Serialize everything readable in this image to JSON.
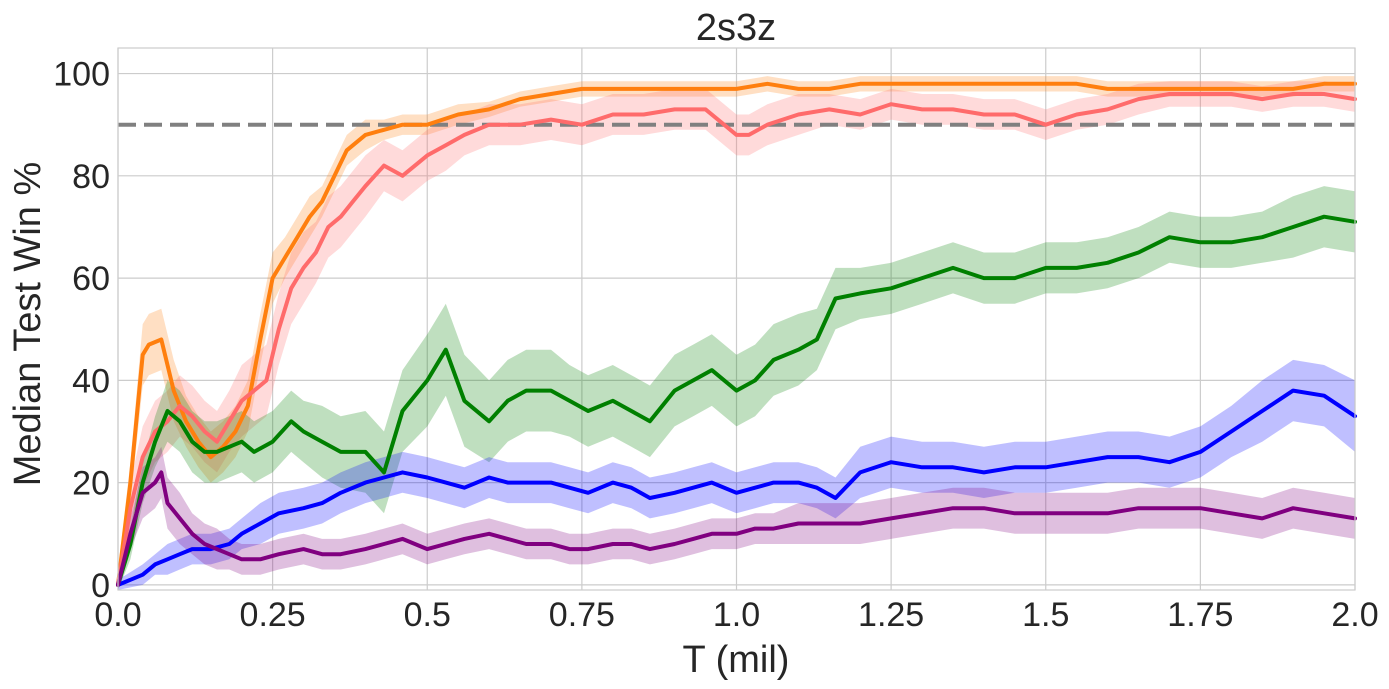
{
  "chart_data": {
    "type": "line",
    "title": "2s3z",
    "xlabel": "T (mil)",
    "ylabel": "Median Test Win %",
    "xlim": [
      0.0,
      2.0
    ],
    "ylim": [
      -1,
      105
    ],
    "xticks": [
      0.0,
      0.25,
      0.5,
      0.75,
      1.0,
      1.25,
      1.5,
      1.75,
      2.0
    ],
    "xtick_labels": [
      "0.0",
      "0.25",
      "0.5",
      "0.75",
      "1.0",
      "1.25",
      "1.5",
      "1.75",
      "2.0"
    ],
    "yticks": [
      0,
      20,
      40,
      60,
      80,
      100
    ],
    "ytick_labels": [
      "0",
      "20",
      "40",
      "60",
      "80",
      "100"
    ],
    "grid": true,
    "reference_line": {
      "y": 90,
      "style": "dashed",
      "color": "#808080"
    },
    "series": [
      {
        "color": "#ff7f0e",
        "x": [
          0,
          0.02,
          0.04,
          0.05,
          0.07,
          0.09,
          0.11,
          0.13,
          0.15,
          0.17,
          0.19,
          0.21,
          0.23,
          0.25,
          0.27,
          0.29,
          0.31,
          0.33,
          0.35,
          0.37,
          0.4,
          0.43,
          0.46,
          0.5,
          0.55,
          0.6,
          0.65,
          0.7,
          0.75,
          0.8,
          0.85,
          0.9,
          0.95,
          1.0,
          1.05,
          1.1,
          1.15,
          1.2,
          1.25,
          1.3,
          1.35,
          1.4,
          1.45,
          1.5,
          1.55,
          1.6,
          1.65,
          1.7,
          1.75,
          1.8,
          1.85,
          1.9,
          1.95,
          2.0
        ],
        "y": [
          0,
          20,
          45,
          47,
          48,
          38,
          32,
          28,
          25,
          27,
          30,
          35,
          48,
          60,
          64,
          68,
          72,
          75,
          80,
          85,
          88,
          89,
          90,
          90,
          92,
          93,
          95,
          96,
          97,
          97,
          97,
          97,
          97,
          97,
          98,
          97,
          97,
          98,
          98,
          98,
          98,
          98,
          98,
          98,
          98,
          97,
          97,
          97,
          97,
          97,
          97,
          97,
          98,
          98
        ],
        "band": [
          3,
          4,
          6,
          6,
          6,
          6,
          5,
          5,
          5,
          5,
          5,
          5,
          5,
          5,
          4,
          4,
          4,
          3,
          3,
          3,
          3,
          2,
          2,
          2,
          2,
          1.5,
          1.5,
          1.5,
          1.5,
          1.5,
          1.5,
          1.5,
          1.5,
          1.5,
          1.5,
          1.5,
          1.5,
          1.5,
          1.5,
          1.5,
          1.5,
          1.5,
          1.5,
          1.5,
          1.5,
          1.5,
          1.5,
          1.5,
          1.5,
          1.5,
          1.5,
          1.5,
          1.5,
          1.5
        ]
      },
      {
        "color": "#ff6b6b",
        "x": [
          0,
          0.02,
          0.04,
          0.06,
          0.08,
          0.1,
          0.12,
          0.14,
          0.16,
          0.18,
          0.2,
          0.22,
          0.24,
          0.26,
          0.28,
          0.3,
          0.32,
          0.34,
          0.36,
          0.38,
          0.4,
          0.43,
          0.46,
          0.5,
          0.53,
          0.56,
          0.6,
          0.65,
          0.7,
          0.75,
          0.8,
          0.85,
          0.9,
          0.95,
          1.0,
          1.02,
          1.05,
          1.1,
          1.15,
          1.2,
          1.25,
          1.3,
          1.35,
          1.4,
          1.45,
          1.5,
          1.55,
          1.6,
          1.65,
          1.7,
          1.75,
          1.8,
          1.85,
          1.9,
          1.95,
          2.0
        ],
        "y": [
          0,
          15,
          25,
          30,
          32,
          35,
          33,
          30,
          28,
          32,
          36,
          38,
          40,
          50,
          58,
          62,
          65,
          70,
          72,
          75,
          78,
          82,
          80,
          84,
          86,
          88,
          90,
          90,
          91,
          90,
          92,
          92,
          93,
          93,
          88,
          88,
          90,
          92,
          93,
          92,
          94,
          93,
          93,
          92,
          92,
          90,
          92,
          93,
          95,
          96,
          96,
          96,
          95,
          96,
          96,
          95
        ],
        "band": [
          3,
          5,
          6,
          6,
          6,
          6,
          6,
          6,
          6,
          6,
          7,
          7,
          7,
          7,
          7,
          7,
          6,
          6,
          6,
          6,
          6,
          5,
          5,
          5,
          5,
          4,
          4,
          4,
          4,
          4,
          4,
          4,
          4,
          4,
          4,
          4,
          4,
          4,
          3,
          3,
          3,
          3,
          3,
          3,
          3,
          3,
          3,
          3,
          3,
          2.5,
          2.5,
          2.5,
          2.5,
          2.5,
          2.5,
          2.5
        ]
      },
      {
        "color": "#008000",
        "x": [
          0,
          0.02,
          0.04,
          0.06,
          0.08,
          0.1,
          0.12,
          0.14,
          0.16,
          0.18,
          0.2,
          0.22,
          0.25,
          0.28,
          0.3,
          0.33,
          0.36,
          0.4,
          0.43,
          0.46,
          0.5,
          0.53,
          0.56,
          0.6,
          0.63,
          0.66,
          0.7,
          0.73,
          0.76,
          0.8,
          0.83,
          0.86,
          0.9,
          0.93,
          0.96,
          1.0,
          1.03,
          1.06,
          1.1,
          1.13,
          1.16,
          1.2,
          1.25,
          1.3,
          1.35,
          1.4,
          1.45,
          1.5,
          1.55,
          1.6,
          1.65,
          1.7,
          1.75,
          1.8,
          1.85,
          1.9,
          1.95,
          2.0
        ],
        "y": [
          0,
          8,
          20,
          28,
          34,
          32,
          28,
          26,
          26,
          27,
          28,
          26,
          28,
          32,
          30,
          28,
          26,
          26,
          22,
          34,
          40,
          46,
          36,
          32,
          36,
          38,
          38,
          36,
          34,
          36,
          34,
          32,
          38,
          40,
          42,
          38,
          40,
          44,
          46,
          48,
          56,
          57,
          58,
          60,
          62,
          60,
          60,
          62,
          62,
          63,
          65,
          68,
          67,
          67,
          68,
          70,
          72,
          71
        ],
        "band": [
          2,
          3,
          4,
          5,
          6,
          6,
          6,
          6,
          6,
          6,
          6,
          6,
          6,
          6,
          6,
          7,
          7,
          8,
          8,
          8,
          9,
          9,
          9,
          8,
          8,
          8,
          8,
          7,
          7,
          7,
          7,
          7,
          7,
          7,
          7,
          7,
          7,
          7,
          7,
          6,
          6,
          5,
          5,
          5,
          5,
          5,
          5,
          5,
          5,
          5,
          5,
          5,
          5,
          5,
          5,
          6,
          6,
          6
        ]
      },
      {
        "color": "#0000ff",
        "x": [
          0,
          0.02,
          0.04,
          0.06,
          0.08,
          0.1,
          0.12,
          0.15,
          0.18,
          0.2,
          0.23,
          0.26,
          0.3,
          0.33,
          0.36,
          0.4,
          0.43,
          0.46,
          0.5,
          0.53,
          0.56,
          0.6,
          0.63,
          0.66,
          0.7,
          0.73,
          0.76,
          0.8,
          0.83,
          0.86,
          0.9,
          0.93,
          0.96,
          1.0,
          1.03,
          1.06,
          1.1,
          1.13,
          1.16,
          1.2,
          1.25,
          1.3,
          1.35,
          1.4,
          1.45,
          1.5,
          1.55,
          1.6,
          1.65,
          1.7,
          1.75,
          1.8,
          1.85,
          1.9,
          1.95,
          2.0
        ],
        "y": [
          0,
          1,
          2,
          4,
          5,
          6,
          7,
          7,
          8,
          10,
          12,
          14,
          15,
          16,
          18,
          20,
          21,
          22,
          21,
          20,
          19,
          21,
          20,
          20,
          20,
          19,
          18,
          20,
          19,
          17,
          18,
          19,
          20,
          18,
          19,
          20,
          20,
          19,
          17,
          22,
          24,
          23,
          23,
          22,
          23,
          23,
          24,
          25,
          25,
          24,
          26,
          30,
          34,
          38,
          37,
          33
        ],
        "band": [
          1,
          1.5,
          2,
          2,
          3,
          3,
          3,
          3,
          3,
          3,
          4,
          4,
          4,
          4,
          4,
          4,
          4,
          4,
          4,
          4,
          4,
          4,
          4,
          4,
          4,
          4,
          4,
          4,
          4,
          4,
          4,
          4,
          4,
          4,
          4,
          4,
          4,
          4,
          4,
          5,
          5,
          5,
          5,
          5,
          5,
          5,
          5,
          5,
          5,
          5,
          5,
          5,
          6,
          6,
          6,
          7
        ]
      },
      {
        "color": "#800080",
        "x": [
          0,
          0.02,
          0.04,
          0.06,
          0.07,
          0.08,
          0.1,
          0.12,
          0.14,
          0.16,
          0.18,
          0.2,
          0.23,
          0.26,
          0.3,
          0.33,
          0.36,
          0.4,
          0.43,
          0.46,
          0.5,
          0.53,
          0.56,
          0.6,
          0.63,
          0.66,
          0.7,
          0.73,
          0.76,
          0.8,
          0.83,
          0.86,
          0.9,
          0.93,
          0.96,
          1.0,
          1.03,
          1.06,
          1.1,
          1.13,
          1.16,
          1.2,
          1.25,
          1.3,
          1.35,
          1.4,
          1.45,
          1.5,
          1.55,
          1.6,
          1.65,
          1.7,
          1.75,
          1.8,
          1.85,
          1.9,
          1.95,
          2.0
        ],
        "y": [
          0,
          10,
          18,
          20,
          22,
          16,
          13,
          10,
          8,
          7,
          6,
          5,
          5,
          6,
          7,
          6,
          6,
          7,
          8,
          9,
          7,
          8,
          9,
          10,
          9,
          8,
          8,
          7,
          7,
          8,
          8,
          7,
          8,
          9,
          10,
          10,
          11,
          11,
          12,
          12,
          12,
          12,
          13,
          14,
          15,
          15,
          14,
          14,
          14,
          14,
          15,
          15,
          15,
          14,
          13,
          15,
          14,
          13
        ],
        "band": [
          1,
          3,
          5,
          5,
          5,
          5,
          5,
          4,
          4,
          4,
          3,
          3,
          3,
          3,
          3,
          3,
          3,
          3,
          3,
          3,
          3,
          3,
          3,
          3,
          3,
          3,
          3,
          3,
          3,
          3,
          3,
          3,
          3,
          3,
          3,
          3,
          3,
          3,
          4,
          4,
          4,
          4,
          4,
          4,
          4,
          4,
          4,
          4,
          4,
          4,
          4,
          4,
          4,
          4,
          4,
          4,
          4,
          4
        ]
      }
    ]
  }
}
